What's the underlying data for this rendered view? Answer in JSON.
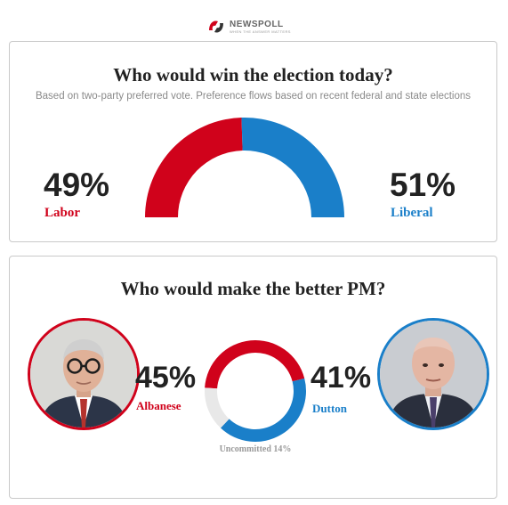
{
  "brand": {
    "name": "NEWSPOLL",
    "tagline": "WHEN THE ANSWER MATTERS"
  },
  "colors": {
    "labor": "#d0021b",
    "liberal": "#1a7fc9",
    "uncommitted": "#e8e8e8"
  },
  "chart_data": [
    {
      "type": "pie",
      "style": "semicircle-gauge",
      "title": "Who would win the election today?",
      "subtitle": "Based on two-party preferred vote. Preference flows based on recent federal and state elections",
      "series": [
        {
          "name": "Labor",
          "value": 49,
          "label": "49%"
        },
        {
          "name": "Liberal",
          "value": 51,
          "label": "51%"
        }
      ]
    },
    {
      "type": "pie",
      "style": "donut",
      "title": "Who would make the better PM?",
      "series": [
        {
          "name": "Albanese",
          "value": 45,
          "label": "45%"
        },
        {
          "name": "Dutton",
          "value": 41,
          "label": "41%"
        },
        {
          "name": "Uncommitted",
          "value": 14,
          "label": "Uncommitted 14%"
        }
      ]
    }
  ],
  "avatars": {
    "left_icon": "person-photo-icon",
    "right_icon": "person-photo-icon"
  }
}
